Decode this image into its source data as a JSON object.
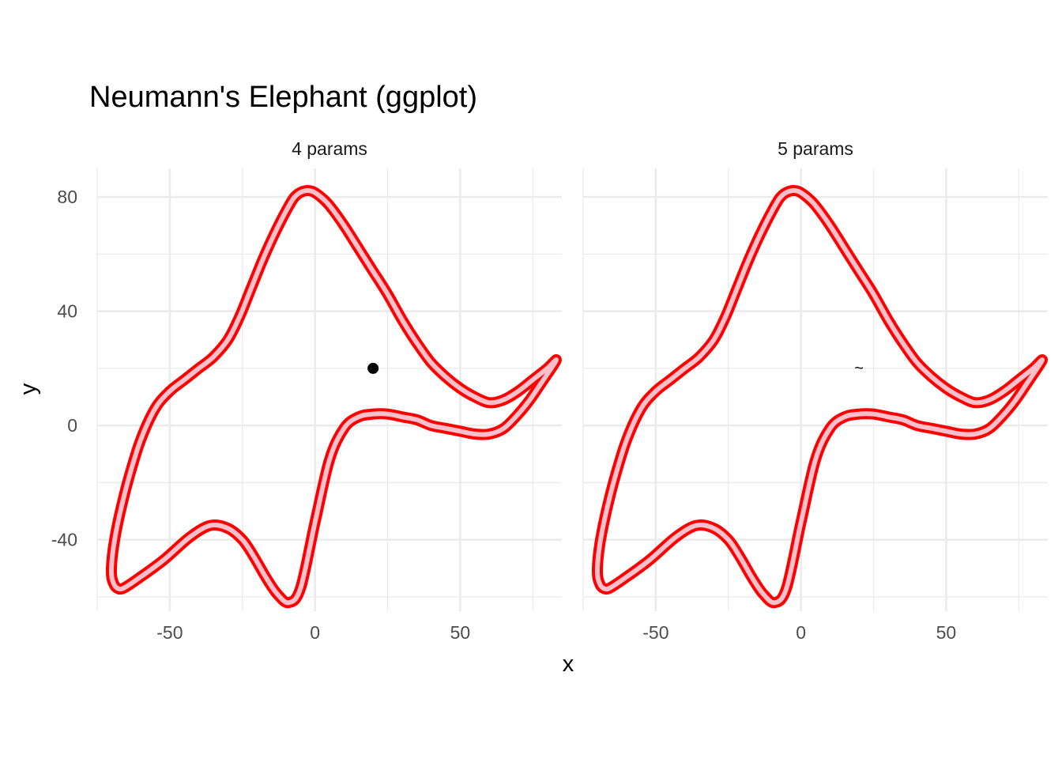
{
  "chart_data": {
    "type": "line",
    "title": "Neumann's Elephant (ggplot)",
    "xlabel": "x",
    "ylabel": "y",
    "xlim": [
      -75,
      85
    ],
    "ylim": [
      -65,
      90
    ],
    "x_ticks": [
      -50,
      0,
      50
    ],
    "x_tick_labels": [
      "-50",
      "0",
      "50"
    ],
    "y_ticks": [
      -40,
      0,
      40,
      80
    ],
    "y_tick_labels": [
      "-40",
      "0",
      "40",
      "80"
    ],
    "grid": true,
    "line_color": "#ff0000",
    "fill_color": "#ffc0cb",
    "panels": [
      {
        "label": "4 params",
        "marker": {
          "type": "point",
          "x": 20,
          "y": 20,
          "text": ""
        },
        "outline": {
          "x": [
            -68,
            -66,
            -60,
            -52,
            -43,
            -36,
            -30,
            -25,
            -21,
            -17,
            -13,
            -9,
            -5,
            0,
            5,
            10,
            15,
            20,
            25,
            30,
            35,
            40,
            45,
            50,
            55,
            60,
            65,
            70,
            74,
            78,
            82,
            83,
            80,
            75,
            70,
            65,
            60,
            55,
            50,
            45,
            40,
            35,
            30,
            25,
            20,
            15,
            10,
            5,
            2,
            -1,
            -4,
            -7,
            -10,
            -14,
            -18,
            -22,
            -26,
            -30,
            -35,
            -40,
            -45,
            -50,
            -55,
            -60,
            -64,
            -67,
            -69,
            -70,
            -70,
            -69,
            -68
          ],
          "y": [
            -57,
            -57,
            -53,
            -47,
            -39,
            -35,
            -36,
            -40,
            -46,
            -53,
            -59,
            -62,
            -57,
            -34,
            -12,
            -1,
            3,
            4,
            4,
            3,
            2,
            0,
            -1,
            -2,
            -3,
            -3,
            -1,
            4,
            9,
            15,
            21,
            23,
            20,
            16,
            12,
            9,
            8,
            10,
            13,
            17,
            22,
            29,
            37,
            46,
            54,
            62,
            70,
            77,
            80,
            82,
            82,
            80,
            75,
            67,
            58,
            48,
            38,
            30,
            24,
            20,
            16,
            12,
            6,
            -5,
            -18,
            -30,
            -40,
            -48,
            -53,
            -56,
            -57
          ]
        }
      },
      {
        "label": "5 params",
        "marker": {
          "type": "text",
          "x": 20,
          "y": 20,
          "text": "~"
        },
        "outline": {
          "x": [
            -68,
            -66,
            -60,
            -52,
            -43,
            -36,
            -30,
            -25,
            -21,
            -17,
            -13,
            -9,
            -5,
            0,
            5,
            10,
            15,
            20,
            25,
            30,
            35,
            40,
            45,
            50,
            55,
            60,
            65,
            70,
            74,
            78,
            82,
            83,
            80,
            75,
            70,
            65,
            60,
            55,
            50,
            45,
            40,
            35,
            30,
            25,
            20,
            15,
            10,
            5,
            2,
            -1,
            -4,
            -7,
            -10,
            -14,
            -18,
            -22,
            -26,
            -30,
            -35,
            -40,
            -45,
            -50,
            -55,
            -60,
            -64,
            -67,
            -69,
            -70,
            -70,
            -69,
            -68
          ],
          "y": [
            -57,
            -57,
            -53,
            -47,
            -39,
            -35,
            -36,
            -40,
            -46,
            -53,
            -59,
            -62,
            -57,
            -34,
            -12,
            -1,
            3,
            4,
            4,
            3,
            2,
            0,
            -1,
            -2,
            -3,
            -3,
            -1,
            4,
            9,
            15,
            21,
            23,
            20,
            16,
            12,
            9,
            8,
            10,
            13,
            17,
            22,
            29,
            37,
            46,
            54,
            62,
            70,
            77,
            80,
            82,
            82,
            80,
            75,
            67,
            58,
            48,
            38,
            30,
            24,
            20,
            16,
            12,
            6,
            -5,
            -18,
            -30,
            -40,
            -48,
            -53,
            -56,
            -57
          ]
        }
      }
    ]
  }
}
